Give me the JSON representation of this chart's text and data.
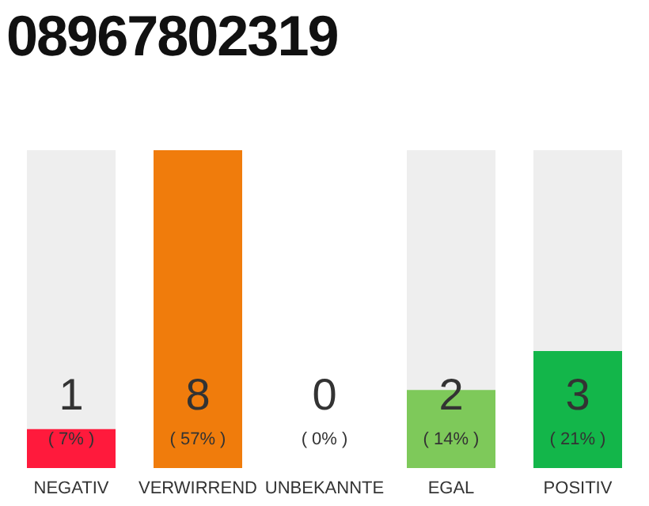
{
  "chart_data": {
    "type": "bar",
    "title": "08967802319",
    "categories": [
      "NEGATIV",
      "VERWIRREND",
      "UNBEKANNTE",
      "EGAL",
      "POSITIV"
    ],
    "values": [
      7,
      57,
      0,
      14,
      21
    ],
    "colors": [
      "#ff1a3c",
      "#f07c0c",
      "#bbbbbb",
      "#7ec95a",
      "#13b64a"
    ],
    "value_labels": [
      "( 7% )",
      "( 57% )",
      "( 0% )",
      "( 14% )",
      "( 21% )"
    ],
    "annotations": [
      "1",
      "8",
      "0",
      "2",
      "3"
    ],
    "grid": false,
    "legend": false
  }
}
